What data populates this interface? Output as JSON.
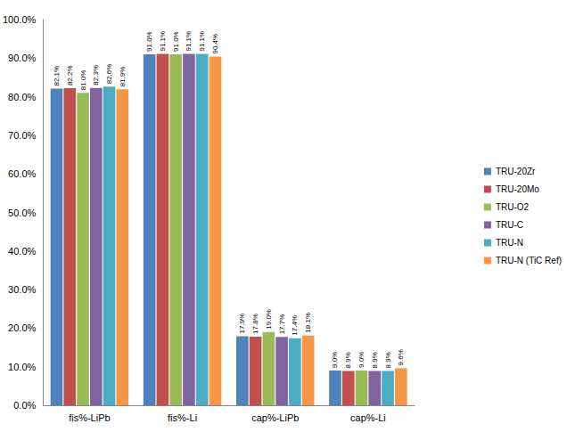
{
  "chart_data": {
    "type": "bar",
    "categories": [
      "fis%-LiPb",
      "fis%-Li",
      "cap%-LiPb",
      "cap%-Li"
    ],
    "series": [
      {
        "name": "TRU-20Zr",
        "color": "#4f81bd",
        "values": [
          82.1,
          91.0,
          17.9,
          9.0
        ],
        "value_labels": [
          "82.1%",
          "91.0%",
          "17.9%",
          "9.0%"
        ]
      },
      {
        "name": "TRU-20Mo",
        "color": "#c0504d",
        "values": [
          82.2,
          91.1,
          17.8,
          8.9
        ],
        "value_labels": [
          "82.2%",
          "91.1%",
          "17.8%",
          "8.9%"
        ]
      },
      {
        "name": "TRU-O2",
        "color": "#9bbb59",
        "values": [
          81.0,
          91.0,
          19.0,
          9.0
        ],
        "value_labels": [
          "81.0%",
          "91.0%",
          "19.0%",
          "9.0%"
        ]
      },
      {
        "name": "TRU-C",
        "color": "#8064a2",
        "values": [
          82.3,
          91.1,
          17.7,
          8.9
        ],
        "value_labels": [
          "82.3%",
          "91.1%",
          "17.7%",
          "8.9%"
        ]
      },
      {
        "name": "TRU-N",
        "color": "#4bacc6",
        "values": [
          82.6,
          91.1,
          17.4,
          8.9
        ],
        "value_labels": [
          "82.6%",
          "91.1%",
          "17.4%",
          "8.9%"
        ]
      },
      {
        "name": "TRU-N (TiC Ref)",
        "color": "#f79646",
        "values": [
          81.9,
          90.4,
          18.1,
          9.6
        ],
        "value_labels": [
          "81.9%",
          "90.4%",
          "18.1%",
          "9.6%"
        ]
      }
    ],
    "ylim": [
      0,
      100
    ],
    "yticks": [
      {
        "value": 0,
        "label": "0.0%"
      },
      {
        "value": 10,
        "label": "10.0%"
      },
      {
        "value": 20,
        "label": "20.0%"
      },
      {
        "value": 30,
        "label": "30.0%"
      },
      {
        "value": 40,
        "label": "40.0%"
      },
      {
        "value": 50,
        "label": "50.0%"
      },
      {
        "value": 60,
        "label": "60.0%"
      },
      {
        "value": 70,
        "label": "70.0%"
      },
      {
        "value": 80,
        "label": "80.0%"
      },
      {
        "value": 90,
        "label": "90.0%"
      },
      {
        "value": 100,
        "label": "100.0%"
      }
    ],
    "grid": false,
    "legend": "right",
    "data_labels": true
  }
}
